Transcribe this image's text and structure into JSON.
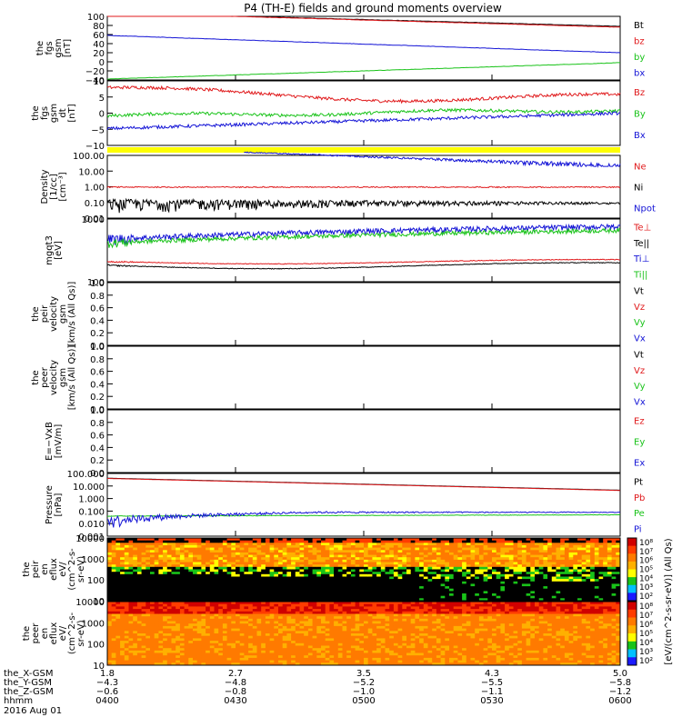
{
  "title": "P4 (TH-E) fields and ground moments overview",
  "colors": {
    "black": "#000000",
    "red": "#e0191b",
    "green": "#19c319",
    "blue": "#1414d6",
    "yellow": "#ffff00"
  },
  "chart_data": [
    {
      "type": "line",
      "id": "fgs-gsm",
      "ylabel": [
        "the",
        "fgs",
        "gsm",
        "[nT]"
      ],
      "yticks": [
        "100",
        "80",
        "60",
        "40",
        "20",
        "0",
        "−20",
        "−40"
      ],
      "ylim": [
        -40,
        100
      ],
      "series": [
        {
          "name": "Bt",
          "color": "black",
          "y_start": 108,
          "y_end": 78
        },
        {
          "name": "bz",
          "color": "red",
          "y_start": 108,
          "y_end": 76
        },
        {
          "name": "by",
          "color": "green",
          "y_start": -38,
          "y_end": -2
        },
        {
          "name": "bx",
          "color": "blue",
          "y_start": 58,
          "y_end": 20
        }
      ]
    },
    {
      "type": "line",
      "id": "fgs-gsm-dt",
      "ylabel": [
        "the",
        "fgs",
        "gsm",
        "dt",
        "[nT]"
      ],
      "yticks": [
        "10",
        "5",
        "0",
        "−5",
        "−10"
      ],
      "ylim": [
        -13,
        10
      ],
      "series": [
        {
          "name": "Bz",
          "color": "red"
        },
        {
          "name": "By",
          "color": "green"
        },
        {
          "name": "Bx",
          "color": "blue"
        }
      ]
    },
    {
      "type": "line",
      "id": "density",
      "log": true,
      "ylabel": [
        "Density",
        "[1/cc]",
        "[cm⁻³]"
      ],
      "yticks": [
        "100.00",
        "10.00",
        "1.00",
        "0.10",
        "0.01"
      ],
      "series": [
        {
          "name": "Ne",
          "color": "red"
        },
        {
          "name": "Ni",
          "color": "black"
        },
        {
          "name": "Npot",
          "color": "blue"
        }
      ]
    },
    {
      "type": "line",
      "id": "temperature",
      "log": true,
      "ylabel": [
        "mgqt3",
        "[eV]"
      ],
      "yticks": [
        "1000",
        "100"
      ],
      "series": [
        {
          "name": "Te⊥",
          "color": "red"
        },
        {
          "name": "Te||",
          "color": "black"
        },
        {
          "name": "Ti⊥",
          "color": "blue"
        },
        {
          "name": "Ti||",
          "color": "green"
        }
      ]
    },
    {
      "type": "line",
      "id": "peir-velocity",
      "ylabel": [
        "the",
        "peir",
        "velocity",
        "gsm",
        "[km/s (All Qs)]"
      ],
      "yticks": [
        "1.0",
        "0.8",
        "0.6",
        "0.4",
        "0.2",
        "0.0"
      ],
      "series": [
        {
          "name": "Vt",
          "color": "black"
        },
        {
          "name": "Vz",
          "color": "red"
        },
        {
          "name": "Vy",
          "color": "green"
        },
        {
          "name": "Vx",
          "color": "blue"
        }
      ]
    },
    {
      "type": "line",
      "id": "peer-velocity",
      "ylabel": [
        "the",
        "peer",
        "velocity",
        "gsm",
        "[km/s (All Qs)]"
      ],
      "yticks": [
        "1.0",
        "0.8",
        "0.6",
        "0.4",
        "0.2",
        "0.0"
      ],
      "series": [
        {
          "name": "Vt",
          "color": "black"
        },
        {
          "name": "Vz",
          "color": "red"
        },
        {
          "name": "Vy",
          "color": "green"
        },
        {
          "name": "Vx",
          "color": "blue"
        }
      ]
    },
    {
      "type": "line",
      "id": "e-field",
      "ylabel": [
        "E=−VxB",
        "[mV/m]"
      ],
      "yticks": [
        "1.0",
        "0.8",
        "0.6",
        "0.4",
        "0.2",
        "0.0"
      ],
      "series": [
        {
          "name": "Ez",
          "color": "red"
        },
        {
          "name": "Ey",
          "color": "green"
        },
        {
          "name": "Ex",
          "color": "blue"
        }
      ]
    },
    {
      "type": "line",
      "id": "pressure",
      "log": true,
      "ylabel": [
        "Pressure",
        "[nPa]"
      ],
      "yticks": [
        "100.000",
        "10.000",
        "1.000",
        "0.100",
        "0.010",
        "0.001"
      ],
      "series": [
        {
          "name": "Pt",
          "color": "black"
        },
        {
          "name": "Pb",
          "color": "red"
        },
        {
          "name": "Pe",
          "color": "green"
        },
        {
          "name": "Pi",
          "color": "blue"
        }
      ]
    },
    {
      "type": "heatmap",
      "id": "peir-eflux",
      "ylabel": [
        "the",
        "peir",
        "en",
        "eflux",
        "eV/",
        "(cm^2-s-",
        "sr-eV)"
      ],
      "yticks": [
        "10000",
        "1000",
        "100",
        "10"
      ]
    },
    {
      "type": "heatmap",
      "id": "peer-eflux",
      "ylabel": [
        "the",
        "peer",
        "en",
        "eflux",
        "eV/",
        "(cm^2-s-",
        "sr-eV)"
      ],
      "yticks": [
        "10000",
        "1000",
        "100",
        "10"
      ]
    }
  ],
  "colorbar": {
    "label": "[eV/(cm^2-s-sr-eV)] (All Qs)",
    "top_ticks": [
      "10⁸",
      "10⁷",
      "10⁶",
      "10⁵",
      "10⁴",
      "10³",
      "10²"
    ],
    "bottom_ticks": [
      "10⁸",
      "10⁷",
      "10⁶",
      "10⁵",
      "10⁴",
      "10³",
      "10²"
    ]
  },
  "xaxis": {
    "rows": [
      {
        "label": "the_X-GSM",
        "values": [
          "1.8",
          "2.7",
          "3.5",
          "4.3",
          "5.0"
        ]
      },
      {
        "label": "the_Y-GSM",
        "values": [
          "−4.3",
          "−4.8",
          "−5.2",
          "−5.5",
          "−5.8"
        ]
      },
      {
        "label": "the_Z-GSM",
        "values": [
          "−0.6",
          "−0.8",
          "−1.0",
          "−1.1",
          "−1.2"
        ]
      },
      {
        "label": "hhmm",
        "values": [
          "0400",
          "0430",
          "0500",
          "0530",
          "0600"
        ]
      }
    ],
    "date": "2016 Aug 01"
  }
}
